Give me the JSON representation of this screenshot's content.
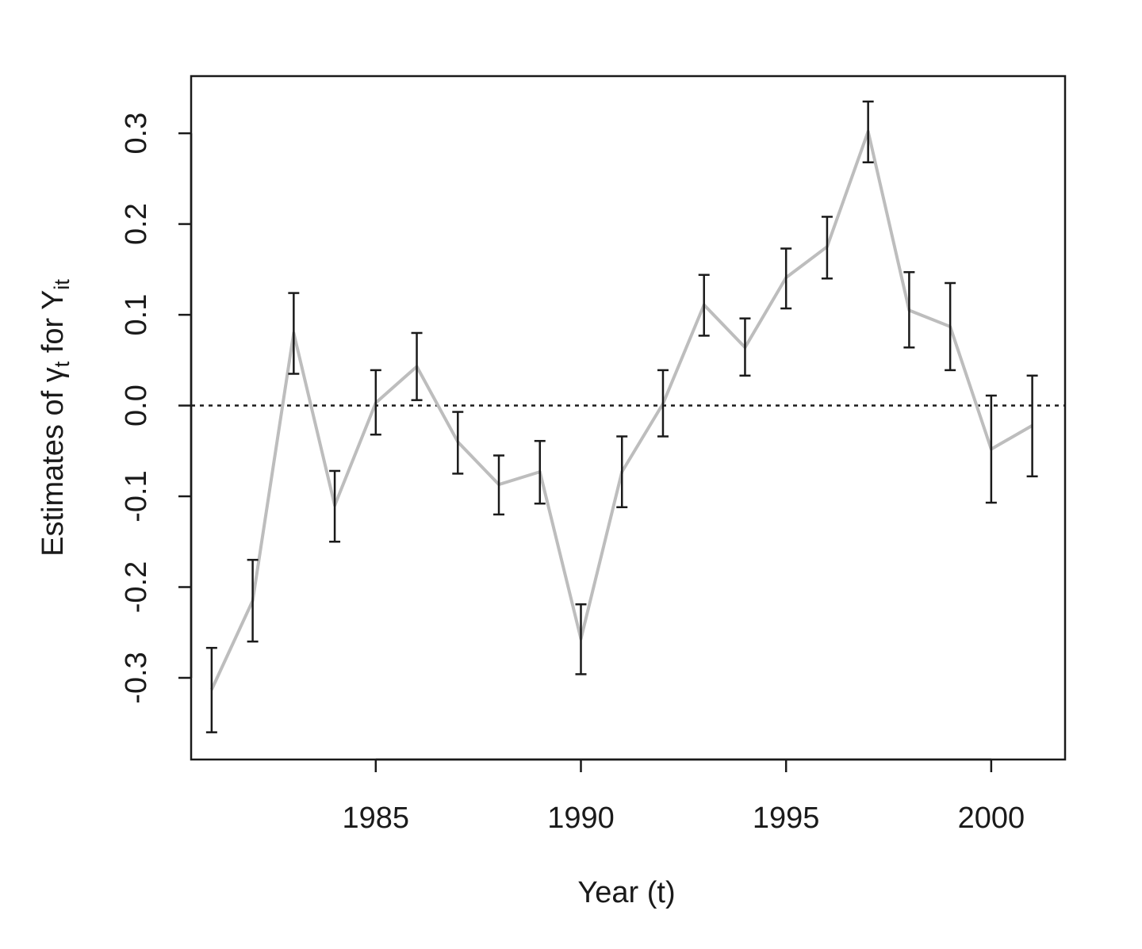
{
  "chart_data": {
    "type": "line",
    "title": "",
    "xlabel": "Year (t)",
    "ylabel": {
      "prefix": "Estimates of ",
      "symbol": "γ",
      "symbol_sub": "t",
      "middle": " for Y",
      "y_sub": "it"
    },
    "xlim": [
      1980.5,
      2001.8
    ],
    "ylim": [
      -0.39,
      0.363
    ],
    "x_ticks": [
      1985,
      1990,
      1995,
      2000
    ],
    "x_tick_labels": [
      "1985",
      "1990",
      "1995",
      "2000"
    ],
    "y_ticks": [
      -0.3,
      -0.2,
      -0.1,
      0.0,
      0.1,
      0.2,
      0.3
    ],
    "y_tick_labels": [
      "-0.3",
      "-0.2",
      "-0.1",
      "0.0",
      "0.1",
      "0.2",
      "0.3"
    ],
    "reference_line": {
      "y": 0,
      "style": "dotted"
    },
    "grid": false,
    "series": [
      {
        "x": [
          1981,
          1982,
          1983,
          1984,
          1985,
          1986,
          1987,
          1988,
          1989,
          1990,
          1991,
          1992,
          1993,
          1994,
          1995,
          1996,
          1997,
          1998,
          1999,
          2000,
          2001
        ],
        "values": [
          -0.313,
          -0.215,
          0.08,
          -0.11,
          0.003,
          0.043,
          -0.04,
          -0.087,
          -0.073,
          -0.257,
          -0.073,
          0.002,
          0.111,
          0.064,
          0.141,
          0.175,
          0.302,
          0.105,
          0.087,
          -0.048,
          -0.022
        ],
        "lower": [
          -0.36,
          -0.26,
          0.035,
          -0.15,
          -0.032,
          0.006,
          -0.075,
          -0.12,
          -0.108,
          -0.296,
          -0.112,
          -0.034,
          0.077,
          0.033,
          0.107,
          0.14,
          0.268,
          0.064,
          0.039,
          -0.107,
          -0.078
        ],
        "upper": [
          -0.267,
          -0.17,
          0.124,
          -0.072,
          0.039,
          0.08,
          -0.007,
          -0.055,
          -0.039,
          -0.219,
          -0.034,
          0.039,
          0.144,
          0.096,
          0.173,
          0.208,
          0.335,
          0.147,
          0.135,
          0.011,
          0.033
        ]
      }
    ],
    "colors": {
      "line": "#bdbdbd",
      "error_bars": "#1a1a1a",
      "axes": "#1a1a1a"
    }
  }
}
